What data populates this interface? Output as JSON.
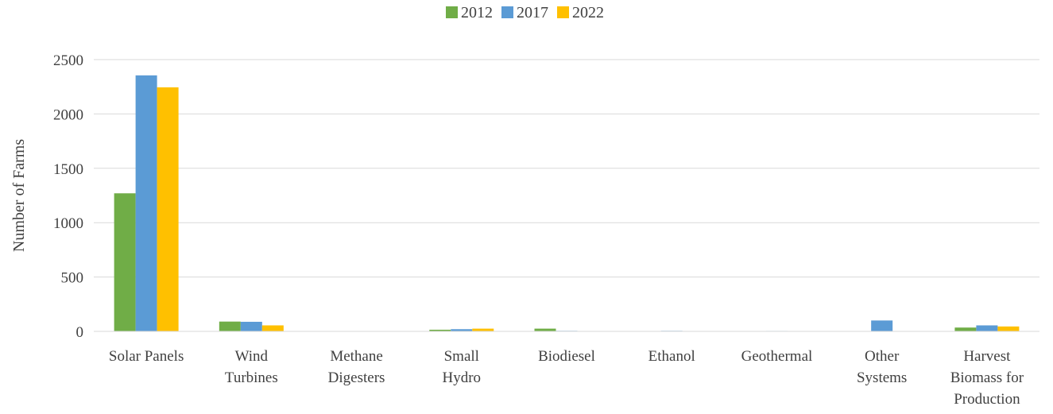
{
  "chart_data": {
    "type": "bar",
    "title": "",
    "xlabel": "",
    "ylabel": "Number of Farms",
    "ylim": [
      0,
      2500
    ],
    "yticks": [
      0,
      500,
      1000,
      1500,
      2000,
      2500
    ],
    "grid": true,
    "legend_position": "top",
    "categories": [
      "Solar Panels",
      "Wind Turbines",
      "Methane Digesters",
      "Small Hydro",
      "Biodiesel",
      "Ethanol",
      "Geothermal",
      "Other Systems",
      "Harvest Biomass for Production"
    ],
    "category_label_lines": [
      [
        "Solar Panels"
      ],
      [
        "Wind",
        "Turbines"
      ],
      [
        "Methane",
        "Digesters"
      ],
      [
        "Small",
        "Hydro"
      ],
      [
        "Biodiesel"
      ],
      [
        "Ethanol"
      ],
      [
        "Geothermal"
      ],
      [
        "Other",
        "Systems"
      ],
      [
        "Harvest",
        "Biomass for",
        "Production"
      ]
    ],
    "series": [
      {
        "name": "2012",
        "color": "#70ad47",
        "values": [
          1270,
          90,
          2,
          15,
          25,
          2,
          2,
          0,
          35
        ]
      },
      {
        "name": "2017",
        "color": "#5b9bd5",
        "values": [
          2355,
          88,
          2,
          20,
          5,
          5,
          4,
          100,
          55
        ]
      },
      {
        "name": "2022",
        "color": "#ffc000",
        "values": [
          2245,
          55,
          2,
          25,
          3,
          3,
          3,
          2,
          45
        ]
      }
    ]
  }
}
